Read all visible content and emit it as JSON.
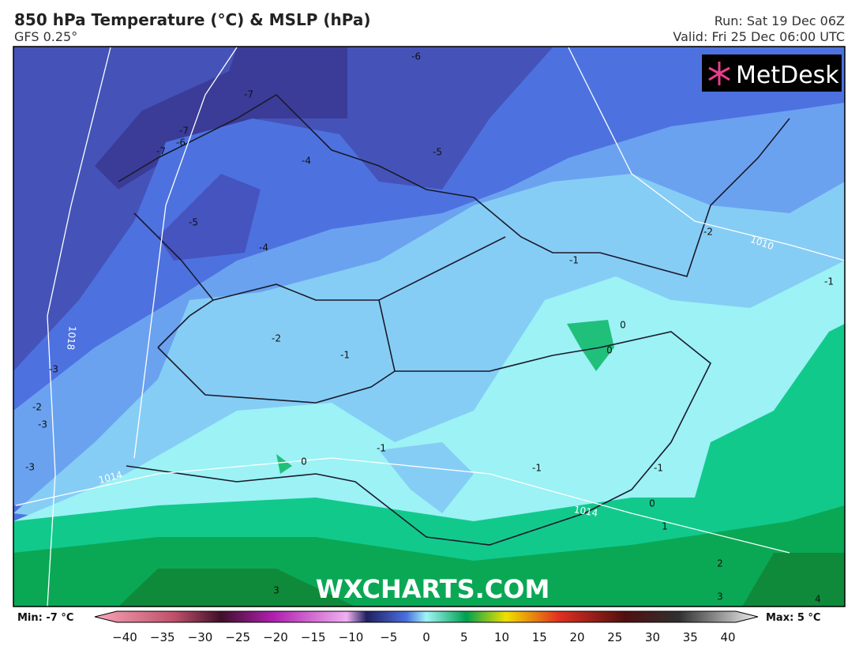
{
  "header": {
    "title": "850 hPa Temperature (°C) & MSLP (hPa)",
    "model": "GFS 0.25°",
    "run": "Run: Sat 19 Dec 06Z",
    "valid": "Valid: Fri 25 Dec 06:00 UTC"
  },
  "logo": "MetDesk",
  "watermark": "WXCHARTS.COM",
  "contour_labels": [
    "-6",
    "-7",
    "-7",
    "-6",
    "-7",
    "-4",
    "-5",
    "-5",
    "-4",
    "-2",
    "-1",
    "-3",
    "-2",
    "-3",
    "-3",
    "-1",
    "-2",
    "-1",
    "0",
    "0",
    "0",
    "-1",
    "-1",
    "-1",
    "0",
    "1",
    "2",
    "3",
    "3",
    "4"
  ],
  "isobar_labels": [
    "1018",
    "1014",
    "1010",
    "1014"
  ],
  "colorbar": {
    "min": "Min: -7 °C",
    "max": "Max: 5 °C",
    "ticks": [
      "−40",
      "−35",
      "−30",
      "−25",
      "−20",
      "−15",
      "−10",
      "−5",
      "0",
      "5",
      "10",
      "15",
      "20",
      "25",
      "30",
      "35",
      "40"
    ]
  }
}
